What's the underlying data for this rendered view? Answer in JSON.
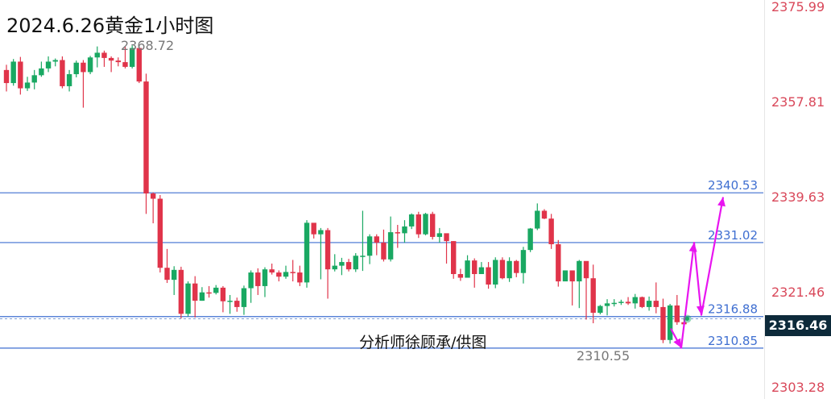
{
  "title": "2024.6.26黄金1小时图",
  "credit": "分析师徐顾承/供图",
  "current_price": "2316.46",
  "colors": {
    "up": "#19a862",
    "down": "#e0344a",
    "level_line": "#3f6fd1",
    "level_label": "#3f6fd1",
    "axis_label": "#d9485a",
    "projection": "#e815f0",
    "badge_bg": "#0d2a3a"
  },
  "chart_data": {
    "type": "candlestick",
    "timeframe": "1h",
    "y_axis": {
      "min": 2303.28,
      "max": 2375.99,
      "tick_labels": [
        "2375.99",
        "2357.81",
        "2339.63",
        "2321.46",
        "2303.28"
      ],
      "position": "right"
    },
    "levels": [
      {
        "value": 2340.53,
        "label": "2340.53"
      },
      {
        "value": 2331.02,
        "label": "2331.02"
      },
      {
        "value": 2316.88,
        "label": "2316.88"
      },
      {
        "value": 2310.85,
        "label": "2310.85"
      }
    ],
    "annotations": [
      {
        "label": "2368.72",
        "value": 2368.72,
        "type": "high"
      },
      {
        "label": "2310.55",
        "value": 2310.55,
        "type": "low"
      }
    ],
    "current_price": 2316.46,
    "projection_path": [
      2314.6,
      2310.9,
      2331.0,
      2317.2,
      2339.7
    ],
    "candles": [
      [
        2364.0,
        2361.5,
        2365.0,
        2359.9
      ],
      [
        2361.5,
        2365.6,
        2366.1,
        2361.0
      ],
      [
        2365.6,
        2360.5,
        2366.5,
        2359.3
      ],
      [
        2360.5,
        2361.6,
        2362.7,
        2360.0
      ],
      [
        2361.6,
        2363.0,
        2364.0,
        2360.3
      ],
      [
        2363.0,
        2364.3,
        2365.6,
        2362.7
      ],
      [
        2364.3,
        2365.6,
        2366.6,
        2363.6
      ],
      [
        2365.6,
        2365.9,
        2366.2,
        2364.7
      ],
      [
        2365.9,
        2360.9,
        2366.6,
        2360.5
      ],
      [
        2360.9,
        2363.2,
        2364.0,
        2359.9
      ],
      [
        2363.2,
        2365.4,
        2365.8,
        2362.6
      ],
      [
        2365.4,
        2363.6,
        2365.9,
        2356.8
      ],
      [
        2363.6,
        2366.4,
        2366.7,
        2363.2
      ],
      [
        2366.4,
        2367.3,
        2368.5,
        2364.5
      ],
      [
        2367.3,
        2366.3,
        2367.7,
        2364.6
      ],
      [
        2366.3,
        2365.8,
        2366.6,
        2363.6
      ],
      [
        2365.8,
        2365.5,
        2366.4,
        2364.7
      ],
      [
        2365.5,
        2364.6,
        2368.5,
        2364.3
      ],
      [
        2364.6,
        2368.2,
        2368.7,
        2364.3
      ],
      [
        2368.2,
        2361.8,
        2368.4,
        2361.5
      ],
      [
        2361.8,
        2340.4,
        2363.3,
        2336.5
      ],
      [
        2340.4,
        2339.4,
        2340.6,
        2334.7
      ],
      [
        2339.4,
        2326.2,
        2340.1,
        2325.3
      ],
      [
        2326.2,
        2323.9,
        2329.8,
        2323.3
      ],
      [
        2323.9,
        2325.8,
        2326.5,
        2321.0
      ],
      [
        2325.8,
        2317.4,
        2326.4,
        2316.5
      ],
      [
        2317.4,
        2323.2,
        2323.6,
        2316.9
      ],
      [
        2323.2,
        2319.9,
        2324.6,
        2316.7
      ],
      [
        2319.9,
        2321.5,
        2322.5,
        2319.9
      ],
      [
        2321.5,
        2321.4,
        2322.7,
        2320.5
      ],
      [
        2321.4,
        2322.4,
        2322.9,
        2321.1
      ],
      [
        2322.4,
        2319.8,
        2322.7,
        2317.7
      ],
      [
        2319.8,
        2319.9,
        2321.0,
        2317.4
      ],
      [
        2319.9,
        2318.7,
        2320.5,
        2317.8
      ],
      [
        2318.7,
        2322.3,
        2322.8,
        2317.2
      ],
      [
        2322.3,
        2325.3,
        2325.7,
        2319.5
      ],
      [
        2325.3,
        2322.7,
        2326.1,
        2321.0
      ],
      [
        2322.7,
        2325.9,
        2326.3,
        2320.6
      ],
      [
        2325.9,
        2325.3,
        2327.0,
        2324.9
      ],
      [
        2325.3,
        2324.5,
        2325.7,
        2323.6
      ],
      [
        2324.5,
        2325.4,
        2326.6,
        2324.1
      ],
      [
        2325.4,
        2325.3,
        2327.7,
        2323.6
      ],
      [
        2325.3,
        2323.4,
        2326.6,
        2322.7
      ],
      [
        2323.4,
        2334.8,
        2335.3,
        2322.4
      ],
      [
        2334.8,
        2332.6,
        2334.5,
        2331.8
      ],
      [
        2332.6,
        2333.4,
        2333.8,
        2324.0
      ],
      [
        2333.4,
        2325.9,
        2333.8,
        2320.3
      ],
      [
        2325.9,
        2326.6,
        2328.8,
        2325.5
      ],
      [
        2326.6,
        2327.3,
        2328.1,
        2324.8
      ],
      [
        2327.3,
        2325.9,
        2327.9,
        2325.5
      ],
      [
        2325.9,
        2328.5,
        2329.0,
        2325.4
      ],
      [
        2328.5,
        2328.5,
        2337.1,
        2325.6
      ],
      [
        2328.5,
        2332.2,
        2332.6,
        2326.9
      ],
      [
        2332.2,
        2331.0,
        2332.6,
        2328.6
      ],
      [
        2331.0,
        2327.8,
        2333.5,
        2327.4
      ],
      [
        2327.8,
        2333.0,
        2336.0,
        2327.4
      ],
      [
        2333.0,
        2332.8,
        2334.4,
        2330.0
      ],
      [
        2332.8,
        2334.1,
        2335.3,
        2331.0
      ],
      [
        2334.1,
        2336.4,
        2336.6,
        2333.6
      ],
      [
        2336.4,
        2332.6,
        2336.9,
        2331.9
      ],
      [
        2332.6,
        2336.5,
        2336.7,
        2332.4
      ],
      [
        2336.5,
        2332.1,
        2336.9,
        2331.6
      ],
      [
        2332.1,
        2332.8,
        2333.8,
        2331.0
      ],
      [
        2332.8,
        2331.3,
        2332.2,
        2327.0
      ],
      [
        2331.3,
        2325.0,
        2331.3,
        2324.1
      ],
      [
        2325.0,
        2324.3,
        2326.0,
        2323.7
      ],
      [
        2324.3,
        2327.6,
        2328.6,
        2325.4
      ],
      [
        2327.6,
        2325.0,
        2328.0,
        2322.4
      ],
      [
        2325.0,
        2326.3,
        2327.3,
        2325.5
      ],
      [
        2326.3,
        2323.0,
        2327.3,
        2322.2
      ],
      [
        2323.0,
        2327.7,
        2328.2,
        2322.3
      ],
      [
        2327.7,
        2324.2,
        2328.2,
        2324.0
      ],
      [
        2324.2,
        2327.5,
        2328.2,
        2323.5
      ],
      [
        2327.5,
        2325.2,
        2327.7,
        2324.4
      ],
      [
        2325.2,
        2329.6,
        2330.2,
        2323.2
      ],
      [
        2329.6,
        2333.7,
        2333.8,
        2329.2
      ],
      [
        2333.7,
        2337.1,
        2338.5,
        2333.4
      ],
      [
        2337.1,
        2335.6,
        2337.4,
        2335.5
      ],
      [
        2335.6,
        2330.7,
        2336.5,
        2329.8
      ],
      [
        2330.7,
        2323.6,
        2331.5,
        2322.6
      ],
      [
        2323.6,
        2325.7,
        2325.7,
        2323.8
      ],
      [
        2325.7,
        2323.6,
        2324.9,
        2319.0
      ],
      [
        2323.6,
        2327.5,
        2327.7,
        2318.5
      ],
      [
        2327.5,
        2324.2,
        2327.3,
        2316.3
      ],
      [
        2324.2,
        2317.6,
        2326.8,
        2315.6
      ],
      [
        2317.6,
        2318.9,
        2319.1,
        2317.3
      ],
      [
        2318.9,
        2319.4,
        2320.2,
        2317.1
      ],
      [
        2319.4,
        2319.5,
        2320.2,
        2318.8
      ],
      [
        2319.5,
        2319.7,
        2320.1,
        2319.1
      ],
      [
        2319.7,
        2319.4,
        2320.6,
        2319.1
      ],
      [
        2319.4,
        2320.6,
        2321.2,
        2318.4
      ],
      [
        2320.6,
        2318.7,
        2320.7,
        2318.5
      ],
      [
        2318.7,
        2319.9,
        2320.7,
        2318.0
      ],
      [
        2319.9,
        2318.7,
        2323.4,
        2317.5
      ],
      [
        2318.7,
        2312.4,
        2320.3,
        2311.8
      ],
      [
        2312.4,
        2319.0,
        2319.3,
        2311.7
      ],
      [
        2319.0,
        2315.8,
        2321.0,
        2315.3
      ],
      [
        2315.8,
        2315.4,
        2316.5,
        2314.9
      ]
    ]
  }
}
